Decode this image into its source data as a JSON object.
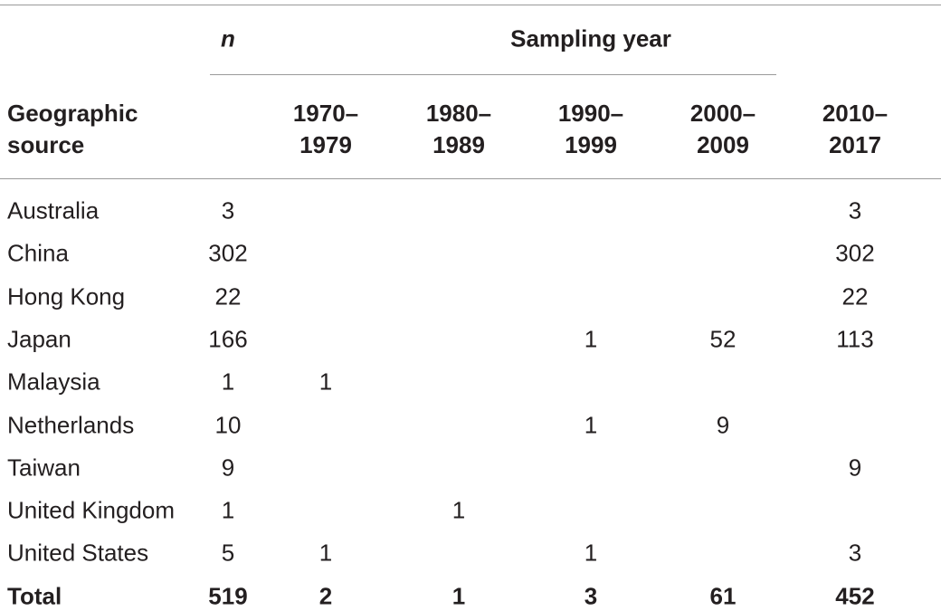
{
  "table": {
    "header": {
      "n": "n",
      "group": "Sampling year",
      "columns": [
        "Geographic source",
        "1970–1979",
        "1980–1989",
        "1990–1999",
        "2000–2009",
        "2010–2017"
      ]
    },
    "rows": [
      [
        "Australia",
        3,
        null,
        null,
        null,
        null,
        3
      ],
      [
        "China",
        302,
        null,
        null,
        null,
        null,
        302
      ],
      [
        "Hong Kong",
        22,
        null,
        null,
        null,
        null,
        22
      ],
      [
        "Japan",
        166,
        null,
        null,
        1,
        52,
        113
      ],
      [
        "Malaysia",
        1,
        1,
        null,
        null,
        null,
        null
      ],
      [
        "Netherlands",
        10,
        null,
        null,
        1,
        9,
        null
      ],
      [
        "Taiwan",
        9,
        null,
        null,
        null,
        null,
        9
      ],
      [
        "United Kingdom",
        1,
        null,
        1,
        null,
        null,
        null
      ],
      [
        "United States",
        5,
        1,
        null,
        1,
        null,
        3
      ]
    ],
    "total": [
      "Total",
      519,
      2,
      1,
      3,
      61,
      452
    ]
  }
}
